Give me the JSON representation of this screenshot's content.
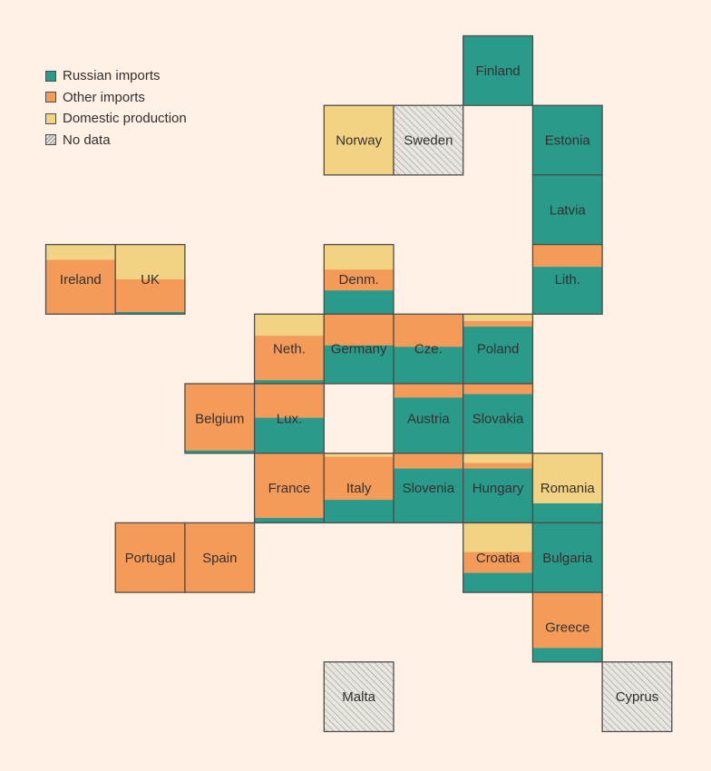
{
  "legend": {
    "russian": "Russian imports",
    "other": "Other imports",
    "domestic": "Domestic production",
    "nodata": "No data"
  },
  "colors": {
    "russian": "#2a9a8a",
    "other": "#f49b5a",
    "domestic": "#f2d383",
    "nodata_fill": "#e9e5df",
    "border": "#4d4d4d",
    "background": "#fff1e5",
    "text": "#33302e"
  },
  "chart_data": {
    "type": "table",
    "series": [
      {
        "name": "Russian imports"
      },
      {
        "name": "Other imports"
      },
      {
        "name": "Domestic production"
      },
      {
        "name": "No data"
      }
    ],
    "countries": [
      {
        "name": "Finland",
        "col": 6,
        "row": 0,
        "russian": 100,
        "other": 0,
        "domestic": 0
      },
      {
        "name": "Norway",
        "col": 4,
        "row": 1,
        "russian": 0,
        "other": 0,
        "domestic": 100
      },
      {
        "name": "Sweden",
        "col": 5,
        "row": 1,
        "nodata": true
      },
      {
        "name": "Estonia",
        "col": 7,
        "row": 1,
        "russian": 100,
        "other": 0,
        "domestic": 0
      },
      {
        "name": "Latvia",
        "col": 7,
        "row": 2,
        "russian": 100,
        "other": 0,
        "domestic": 0
      },
      {
        "name": "Ireland",
        "col": 0,
        "row": 3,
        "russian": 0,
        "other": 78,
        "domestic": 22
      },
      {
        "name": "UK",
        "col": 1,
        "row": 3,
        "russian": 3,
        "other": 47,
        "domestic": 50
      },
      {
        "name": "Denm.",
        "col": 4,
        "row": 3,
        "russian": 34,
        "other": 30,
        "domestic": 36
      },
      {
        "name": "Lith.",
        "col": 7,
        "row": 3,
        "russian": 68,
        "other": 32,
        "domestic": 0
      },
      {
        "name": "Neth.",
        "col": 3,
        "row": 4,
        "russian": 5,
        "other": 64,
        "domestic": 31
      },
      {
        "name": "Germany",
        "col": 4,
        "row": 4,
        "russian": 55,
        "other": 45,
        "domestic": 0
      },
      {
        "name": "Cze.",
        "col": 5,
        "row": 4,
        "russian": 53,
        "other": 46,
        "domestic": 1
      },
      {
        "name": "Poland",
        "col": 6,
        "row": 4,
        "russian": 82,
        "other": 8,
        "domestic": 10
      },
      {
        "name": "Belgium",
        "col": 2,
        "row": 5,
        "russian": 4,
        "other": 96,
        "domestic": 0
      },
      {
        "name": "Lux.",
        "col": 3,
        "row": 5,
        "russian": 51,
        "other": 49,
        "domestic": 0
      },
      {
        "name": "Austria",
        "col": 5,
        "row": 5,
        "russian": 80,
        "other": 19,
        "domestic": 1
      },
      {
        "name": "Slovakia",
        "col": 6,
        "row": 5,
        "russian": 85,
        "other": 15,
        "domestic": 0
      },
      {
        "name": "France",
        "col": 3,
        "row": 6,
        "russian": 7,
        "other": 93,
        "domestic": 0
      },
      {
        "name": "Italy",
        "col": 4,
        "row": 6,
        "russian": 33,
        "other": 62,
        "domestic": 5
      },
      {
        "name": "Slovenia",
        "col": 5,
        "row": 6,
        "russian": 78,
        "other": 22,
        "domestic": 0
      },
      {
        "name": "Hungary",
        "col": 6,
        "row": 6,
        "russian": 78,
        "other": 8,
        "domestic": 14
      },
      {
        "name": "Romania",
        "col": 7,
        "row": 6,
        "russian": 28,
        "other": 0,
        "domestic": 72
      },
      {
        "name": "Portugal",
        "col": 1,
        "row": 7,
        "russian": 0,
        "other": 100,
        "domestic": 0
      },
      {
        "name": "Spain",
        "col": 2,
        "row": 7,
        "russian": 0,
        "other": 100,
        "domestic": 0
      },
      {
        "name": "Croatia",
        "col": 6,
        "row": 7,
        "russian": 28,
        "other": 30,
        "domestic": 42
      },
      {
        "name": "Bulgaria",
        "col": 7,
        "row": 7,
        "russian": 100,
        "other": 0,
        "domestic": 0
      },
      {
        "name": "Greece",
        "col": 7,
        "row": 8,
        "russian": 20,
        "other": 80,
        "domestic": 0
      },
      {
        "name": "Malta",
        "col": 4,
        "row": 9,
        "nodata": true
      },
      {
        "name": "Cyprus",
        "col": 8,
        "row": 9,
        "nodata": true
      }
    ]
  }
}
